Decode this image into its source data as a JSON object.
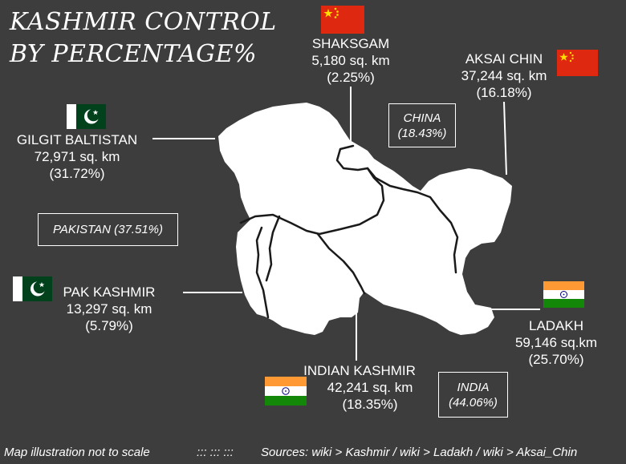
{
  "title": {
    "line1": "KASHMIR  CONTROL",
    "line2": "BY  PERCENTAGE%"
  },
  "regions": {
    "shaksgam": {
      "name": "SHAKSGAM",
      "area": "5,180 sq. km",
      "percent": "(2.25%)",
      "flag": "china-flag-icon"
    },
    "aksai_chin": {
      "name": "AKSAI CHIN",
      "area": "37,244 sq. km",
      "percent": "(16.18%)",
      "flag": "china-flag-icon"
    },
    "gilgit_baltistan": {
      "name": "GILGIT BALTISTAN",
      "area": "72,971 sq. km",
      "percent": "(31.72%)",
      "flag": "pakistan-flag-icon"
    },
    "pak_kashmir": {
      "name": "PAK KASHMIR",
      "area": "13,297 sq. km",
      "percent": "(5.79%)",
      "flag": "pakistan-flag-icon"
    },
    "indian_kashmir": {
      "name": "INDIAN KASHMIR",
      "area": "42,241 sq. km",
      "percent": "(18.35%)",
      "flag": "india-flag-icon"
    },
    "ladakh": {
      "name": "LADAKH",
      "area": "59,146 sq.km",
      "percent": "(25.70%)",
      "flag": "india-flag-icon"
    }
  },
  "countries": {
    "china": {
      "name": "CHINA",
      "percent": "(18.43%)"
    },
    "pakistan": {
      "label": "PAKISTAN (37.51%)"
    },
    "india": {
      "name": "INDIA",
      "percent": "(44.06%)"
    }
  },
  "footer": {
    "note": "Map illustration not to scale",
    "separator": "::: ::: :::",
    "sources": "Sources: wiki > Kashmir / wiki > Ladakh / wiki > Aksai_Chin"
  },
  "colors": {
    "background": "#3d3d3d",
    "map_fill": "#ffffff",
    "border_line": "#1a1a1a",
    "china_red": "#de2910",
    "china_star": "#ffde00",
    "pakistan_green": "#01411c",
    "india_saffron": "#ff9933",
    "india_green": "#138808",
    "india_chakra": "#000080"
  }
}
